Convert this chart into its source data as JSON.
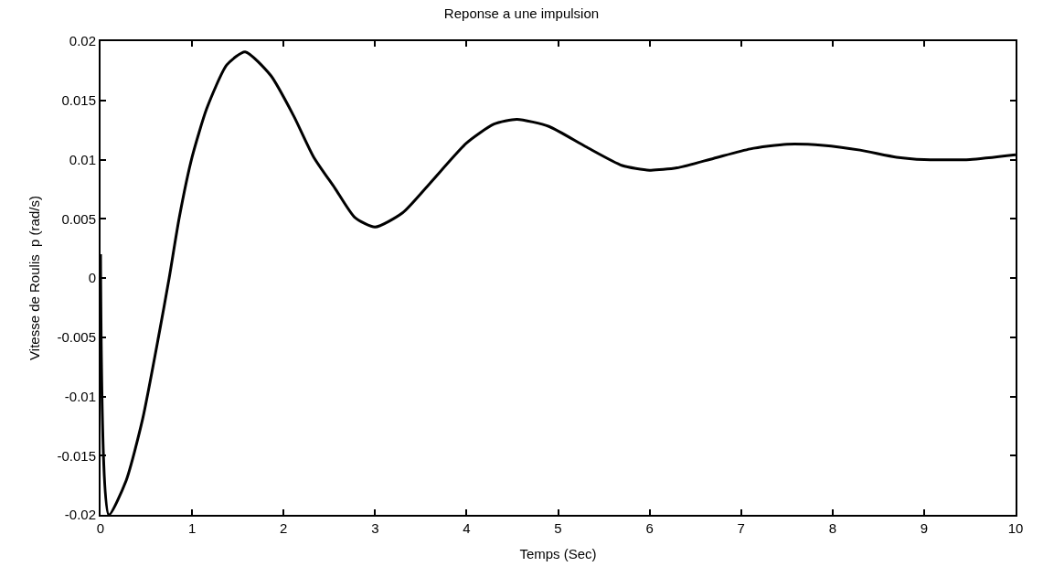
{
  "chart_data": {
    "type": "line",
    "title": "Reponse a une impulsion",
    "xlabel": "Temps (Sec)",
    "ylabel": "Vitesse de Roulis  p (rad/s)",
    "x": [
      0,
      0.09,
      0.28,
      0.46,
      0.64,
      0.75,
      0.86,
      1.0,
      1.16,
      1.38,
      1.58,
      1.86,
      2.11,
      2.33,
      2.56,
      2.78,
      3.0,
      3.3,
      3.6,
      4.0,
      4.3,
      4.55,
      4.9,
      5.3,
      5.7,
      6.0,
      6.3,
      6.7,
      7.1,
      7.5,
      7.9,
      8.3,
      8.7,
      9.0,
      9.5,
      10
    ],
    "series": [
      {
        "color": "#000000",
        "values": [
          0.002,
          -0.02,
          -0.0171,
          -0.0119,
          -0.0047,
          0.0,
          0.0051,
          0.0102,
          0.0143,
          0.018,
          0.0191,
          0.0171,
          0.0137,
          0.0102,
          0.0076,
          0.0051,
          0.0043,
          0.0055,
          0.008,
          0.0114,
          0.013,
          0.0134,
          0.0128,
          0.0111,
          0.0095,
          0.0091,
          0.0093,
          0.0101,
          0.0109,
          0.0113,
          0.0112,
          0.0108,
          0.0102,
          0.01,
          0.01,
          0.0104
        ]
      }
    ],
    "xlim": [
      0,
      10
    ],
    "xticks": [
      0,
      1,
      2,
      3,
      4,
      5,
      6,
      7,
      8,
      9,
      10
    ],
    "ylim": [
      -0.02,
      0.02
    ],
    "yticks": [
      -0.02,
      -0.015,
      -0.01,
      -0.005,
      0,
      0.005,
      0.01,
      0.015,
      0.02
    ],
    "grid": false,
    "marker": "none",
    "line_style": "solid"
  }
}
